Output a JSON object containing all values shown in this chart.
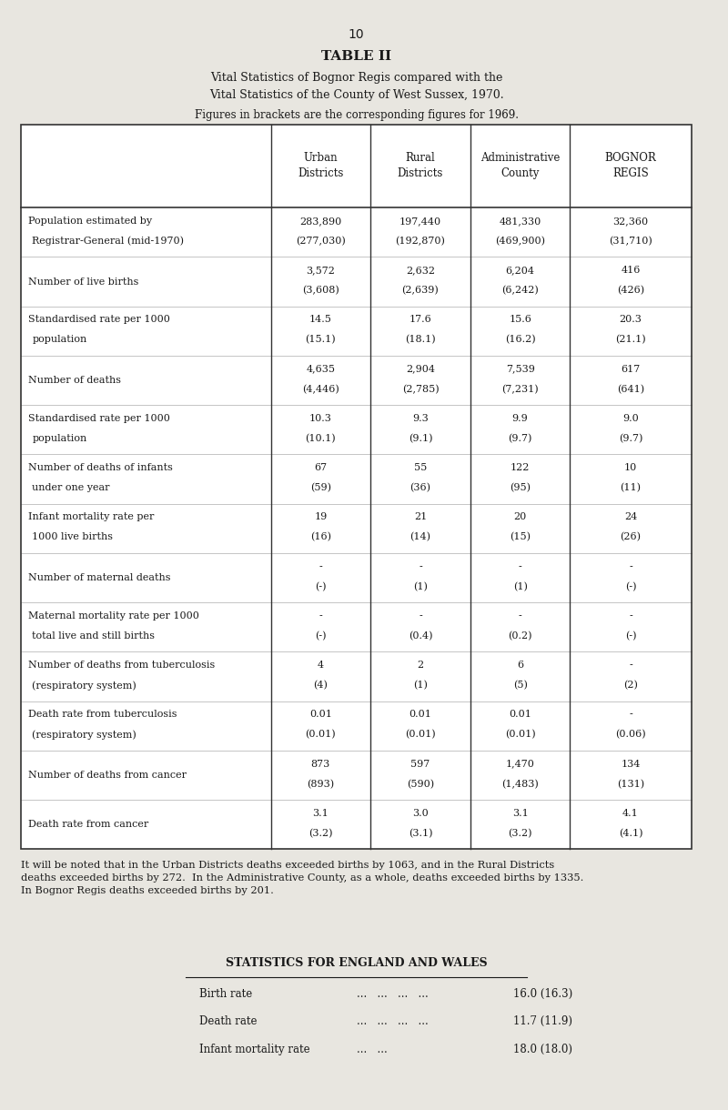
{
  "page_number": "10",
  "title": "TABLE II",
  "subtitle1": "Vital Statistics of Bognor Regis compared with the",
  "subtitle2": "Vital Statistics of the County of West Sussex, 1970.",
  "subtitle3": "Figures in brackets are the corresponding figures for 1969.",
  "col_headers": [
    "Urban\nDistricts",
    "Rural\nDistricts",
    "Administrative\nCounty",
    "BOGNOR\nREGIS"
  ],
  "rows": [
    {
      "label": [
        "Population estimated by",
        "Registrar-General (mid-1970)"
      ],
      "values": [
        "283,890\n(277,030)",
        "197,440\n(192,870)",
        "481,330\n(469,900)",
        "32,360\n(31,710)"
      ]
    },
    {
      "label": [
        "Number of live births",
        ""
      ],
      "values": [
        "3,572\n(3,608)",
        "2,632\n(2,639)",
        "6,204\n(6,242)",
        "416\n(426)"
      ]
    },
    {
      "label": [
        "Standardised rate per 1000",
        "population"
      ],
      "values": [
        "14.5\n(15.1)",
        "17.6\n(18.1)",
        "15.6\n(16.2)",
        "20.3\n(21.1)"
      ]
    },
    {
      "label": [
        "Number of deaths",
        ""
      ],
      "values": [
        "4,635\n(4,446)",
        "2,904\n(2,785)",
        "7,539\n(7,231)",
        "617\n(641)"
      ]
    },
    {
      "label": [
        "Standardised rate per 1000",
        "population"
      ],
      "values": [
        "10.3\n(10.1)",
        "9.3\n(9.1)",
        "9.9\n(9.7)",
        "9.0\n(9.7)"
      ]
    },
    {
      "label": [
        "Number of deaths of infants",
        "under one year"
      ],
      "values": [
        "67\n(59)",
        "55\n(36)",
        "122\n(95)",
        "10\n(11)"
      ]
    },
    {
      "label": [
        "Infant mortality rate per",
        "1000 live births"
      ],
      "values": [
        "19\n(16)",
        "21\n(14)",
        "20\n(15)",
        "24\n(26)"
      ]
    },
    {
      "label": [
        "Number of maternal deaths",
        ""
      ],
      "values": [
        "-\n(-)",
        "-\n(1)",
        "-\n(1)",
        "-\n(-)"
      ]
    },
    {
      "label": [
        "Maternal mortality rate per 1000",
        "total live and still births"
      ],
      "values": [
        "-\n(-)",
        "-\n(0.4)",
        "-\n(0.2)",
        "-\n(-)"
      ]
    },
    {
      "label": [
        "Number of deaths from tuberculosis",
        "(respiratory system)"
      ],
      "values": [
        "4\n(4)",
        "2\n(1)",
        "6\n(5)",
        "-\n(2)"
      ]
    },
    {
      "label": [
        "Death rate from tuberculosis",
        "(respiratory system)"
      ],
      "values": [
        "0.01\n(0.01)",
        "0.01\n(0.01)",
        "0.01\n(0.01)",
        "-\n(0.06)"
      ]
    },
    {
      "label": [
        "Number of deaths from cancer",
        ""
      ],
      "values": [
        "873\n(893)",
        "597\n(590)",
        "1,470\n(1,483)",
        "134\n(131)"
      ]
    },
    {
      "label": [
        "Death rate from cancer",
        ""
      ],
      "values": [
        "3.1\n(3.2)",
        "3.0\n(3.1)",
        "3.1\n(3.2)",
        "4.1\n(4.1)"
      ]
    }
  ],
  "footer_text": "It will be noted that in the Urban Districts deaths exceeded births by 1063, and in the Rural Districts\ndeaths exceeded births by 272.  In the Administrative County, as a whole, deaths exceeded births by 1335.\nIn Bognor Regis deaths exceeded births by 201.",
  "stats_title": "STATISTICS FOR ENGLAND AND WALES",
  "stats_rows": [
    {
      "label": "Birth rate",
      "dots": "...   ...   ...   ...",
      "value": "16.0 (16.3)"
    },
    {
      "label": "Death rate",
      "dots": "...   ...   ...   ...",
      "value": "11.7 (11.9)"
    },
    {
      "label": "Infant mortality rate",
      "dots": "...   ...",
      "value": "18.0 (18.0)"
    }
  ],
  "bg_color": "#e8e6e0",
  "text_color": "#1a1a1a",
  "table_line_color": "#333333"
}
